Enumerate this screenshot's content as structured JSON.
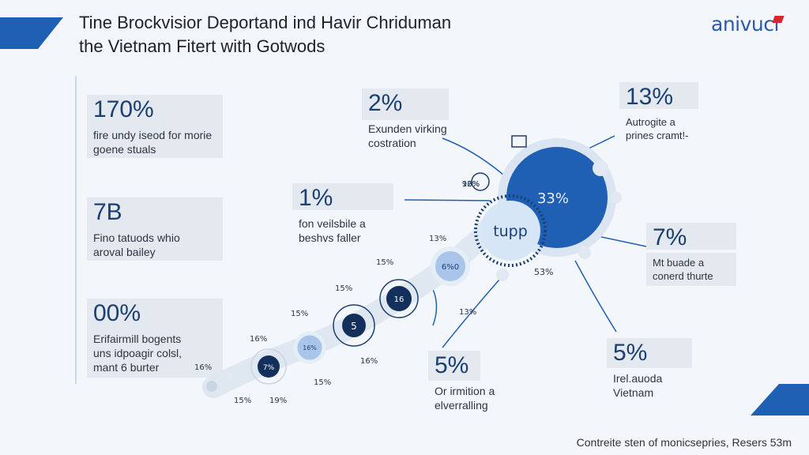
{
  "title": {
    "line1": "Tine Brockvisior Deportand ind Havir Chriduman",
    "line2": "the Vietnam Fitert with Gotwods"
  },
  "logo": {
    "text": "anivuci"
  },
  "footer": {
    "text": "Contreite sten of monicsepries, Resers 53m"
  },
  "colors": {
    "accent": "#1f5fb4",
    "dark_navy": "#13305c",
    "light_blue": "#a9c6ea",
    "background": "#f3f6fa"
  },
  "left_stats": [
    {
      "value": "170%",
      "desc": "fire undy iseod for morie\ngoene stuals"
    },
    {
      "value": "7B",
      "desc": "Fino tatuods whio\naroval bailey"
    },
    {
      "value": "00%",
      "desc": "Erifairmill bogents\nuns idpoagir colsl,\nmant 6 burter"
    }
  ],
  "callouts": [
    {
      "value": "2%",
      "desc": "Exunden virking\ncostration"
    },
    {
      "value": "13%",
      "desc": "Autrogite a\nprines cramt!-"
    },
    {
      "value": "1%",
      "desc": "fon veilsbile a\nbeshvs faller"
    },
    {
      "value": "7%",
      "desc": "Mt buade a\nconerd thurte"
    },
    {
      "value": "5%",
      "desc": "Or irmition a\nelverralling"
    },
    {
      "value": "5%",
      "desc": "Irel.auoda\nVietnam"
    }
  ],
  "nodes": {
    "big": "33%",
    "mid": "tupp",
    "n1": "6%0",
    "n2": "16",
    "n3": "5",
    "n4": "16%",
    "n5": "7%",
    "mini_big": "92%"
  },
  "small_labels": [
    "13%",
    "15%",
    "15%",
    "15%",
    "16%",
    "16%",
    "15%",
    "19%",
    "15%",
    "16%",
    "13%",
    "16%",
    "53%"
  ]
}
